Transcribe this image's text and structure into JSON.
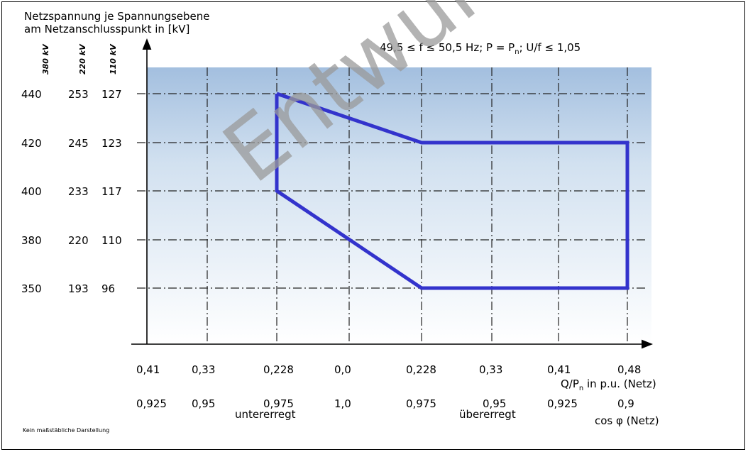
{
  "chart_data": {
    "type": "line",
    "title": "Netzspannung je Spannungsebene am Netzanschlusspunkt in [kV]",
    "title_lines": [
      "Netzspannung je Spannungsebene",
      "am Netzanschlusspunkt in [kV]"
    ],
    "condition": "49,5 ≤ f ≤ 50,5 Hz; P = P",
    "condition_sub": "n",
    "condition_tail": "; U/f ≤ 1,05",
    "y_level_headers": [
      "380 kV",
      "220 kV",
      "110 kV"
    ],
    "y_rows": [
      {
        "labels": [
          "440",
          "253",
          "127"
        ],
        "value": 127
      },
      {
        "labels": [
          "420",
          "245",
          "123"
        ],
        "value": 123
      },
      {
        "labels": [
          "400",
          "233",
          "117"
        ],
        "value": 117
      },
      {
        "labels": [
          "380",
          "220",
          "110"
        ],
        "value": 110
      },
      {
        "labels": [
          "350",
          "193",
          "96"
        ],
        "value": 96
      }
    ],
    "x_labels_q": [
      "0,41",
      "0,33",
      "0,228",
      "0,0",
      "0,228",
      "0,33",
      "0,41",
      "0,48"
    ],
    "x_labels_cos": [
      "0,925",
      "0,95",
      "0,975",
      "1,0",
      "0,975",
      "0,95",
      "0,925",
      "0,9"
    ],
    "x_label_q_text": "Q/P",
    "x_label_q_sub": "n",
    "x_label_q_tail": " in p.u. (Netz)",
    "x_label_cos": "cos φ (Netz)",
    "region_labels": {
      "left": "untererregt",
      "right": "übererregt"
    },
    "series": [
      {
        "color": "#3333cc",
        "points": [
          {
            "x": 2,
            "y": 127
          },
          {
            "x": 4,
            "y": 123
          },
          {
            "x": 7,
            "y": 123
          },
          {
            "x": 7,
            "y": 96
          },
          {
            "x": 4,
            "y": 96
          },
          {
            "x": 2,
            "y": 117
          },
          {
            "x": 2,
            "y": 127
          }
        ]
      }
    ],
    "footnote": "Kein maßstäbliche Darstellung",
    "watermark": "Entwurf",
    "colors": {
      "gradient_top": "#a3bfdf",
      "gradient_bottom": "#ffffff",
      "curve": "#3333cc"
    }
  }
}
